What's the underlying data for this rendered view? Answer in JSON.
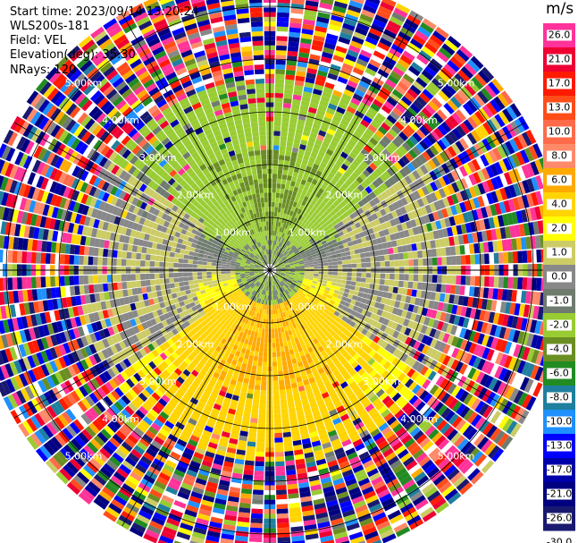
{
  "header": {
    "start_time": "Start time: 2023/09/14 13:20:24",
    "site": "WLS200s-181",
    "field": "Field: VEL",
    "elevation": "Elevation(deg): 35.30",
    "nrays": "NRays: 120"
  },
  "colorbar": {
    "unit": "m/s",
    "ticks": [
      "26.0",
      "21.0",
      "17.0",
      "13.0",
      "10.0",
      "8.0",
      "6.0",
      "4.0",
      "2.0",
      "1.0",
      "0.0",
      "-1.0",
      "-2.0",
      "-4.0",
      "-6.0",
      "-8.0",
      "-10.0",
      "-13.0",
      "-17.0",
      "-21.0",
      "-26.0",
      "-30.0"
    ],
    "colors": [
      "#ff3399",
      "#ee0033",
      "#ff1a00",
      "#ff4d1a",
      "#ff6b4a",
      "#ff8a6a",
      "#ffaa00",
      "#ffd400",
      "#ffff00",
      "#cccc66",
      "#888888",
      "#6e7b6e",
      "#99cc33",
      "#6b8e23",
      "#228b22",
      "#1f7f9f",
      "#1e90ff",
      "#0000ff",
      "#0000aa",
      "#000080",
      "#191970"
    ]
  },
  "chart_data": {
    "type": "ppi",
    "field": "VEL",
    "units": "m/s",
    "nrays": 120,
    "range_rings_km": [
      1.0,
      2.0,
      3.0,
      4.0,
      5.0
    ],
    "ring_labels": [
      "1.00km",
      "2.00km",
      "3.00km",
      "4.00km",
      "5.00km"
    ],
    "vmin": -30.0,
    "vmax": 26.0,
    "zones": [
      {
        "r_km": [
          0.0,
          0.6
        ],
        "description": "green mixture near radar"
      },
      {
        "r_km": [
          0.6,
          2.2
        ],
        "north_half": "green -2 to -6 m/s",
        "south_half": "yellow/orange 2 to 6 m/s",
        "east_west": "gray near 0"
      },
      {
        "r_km": [
          2.2,
          3.6
        ],
        "north_half": "olive/green -2 to -4 m/s",
        "south_half": "yellow 2 m/s",
        "east_west": "gray and white sectors"
      },
      {
        "r_km": [
          3.6,
          5.6
        ],
        "description": "noise, all colors"
      }
    ]
  }
}
